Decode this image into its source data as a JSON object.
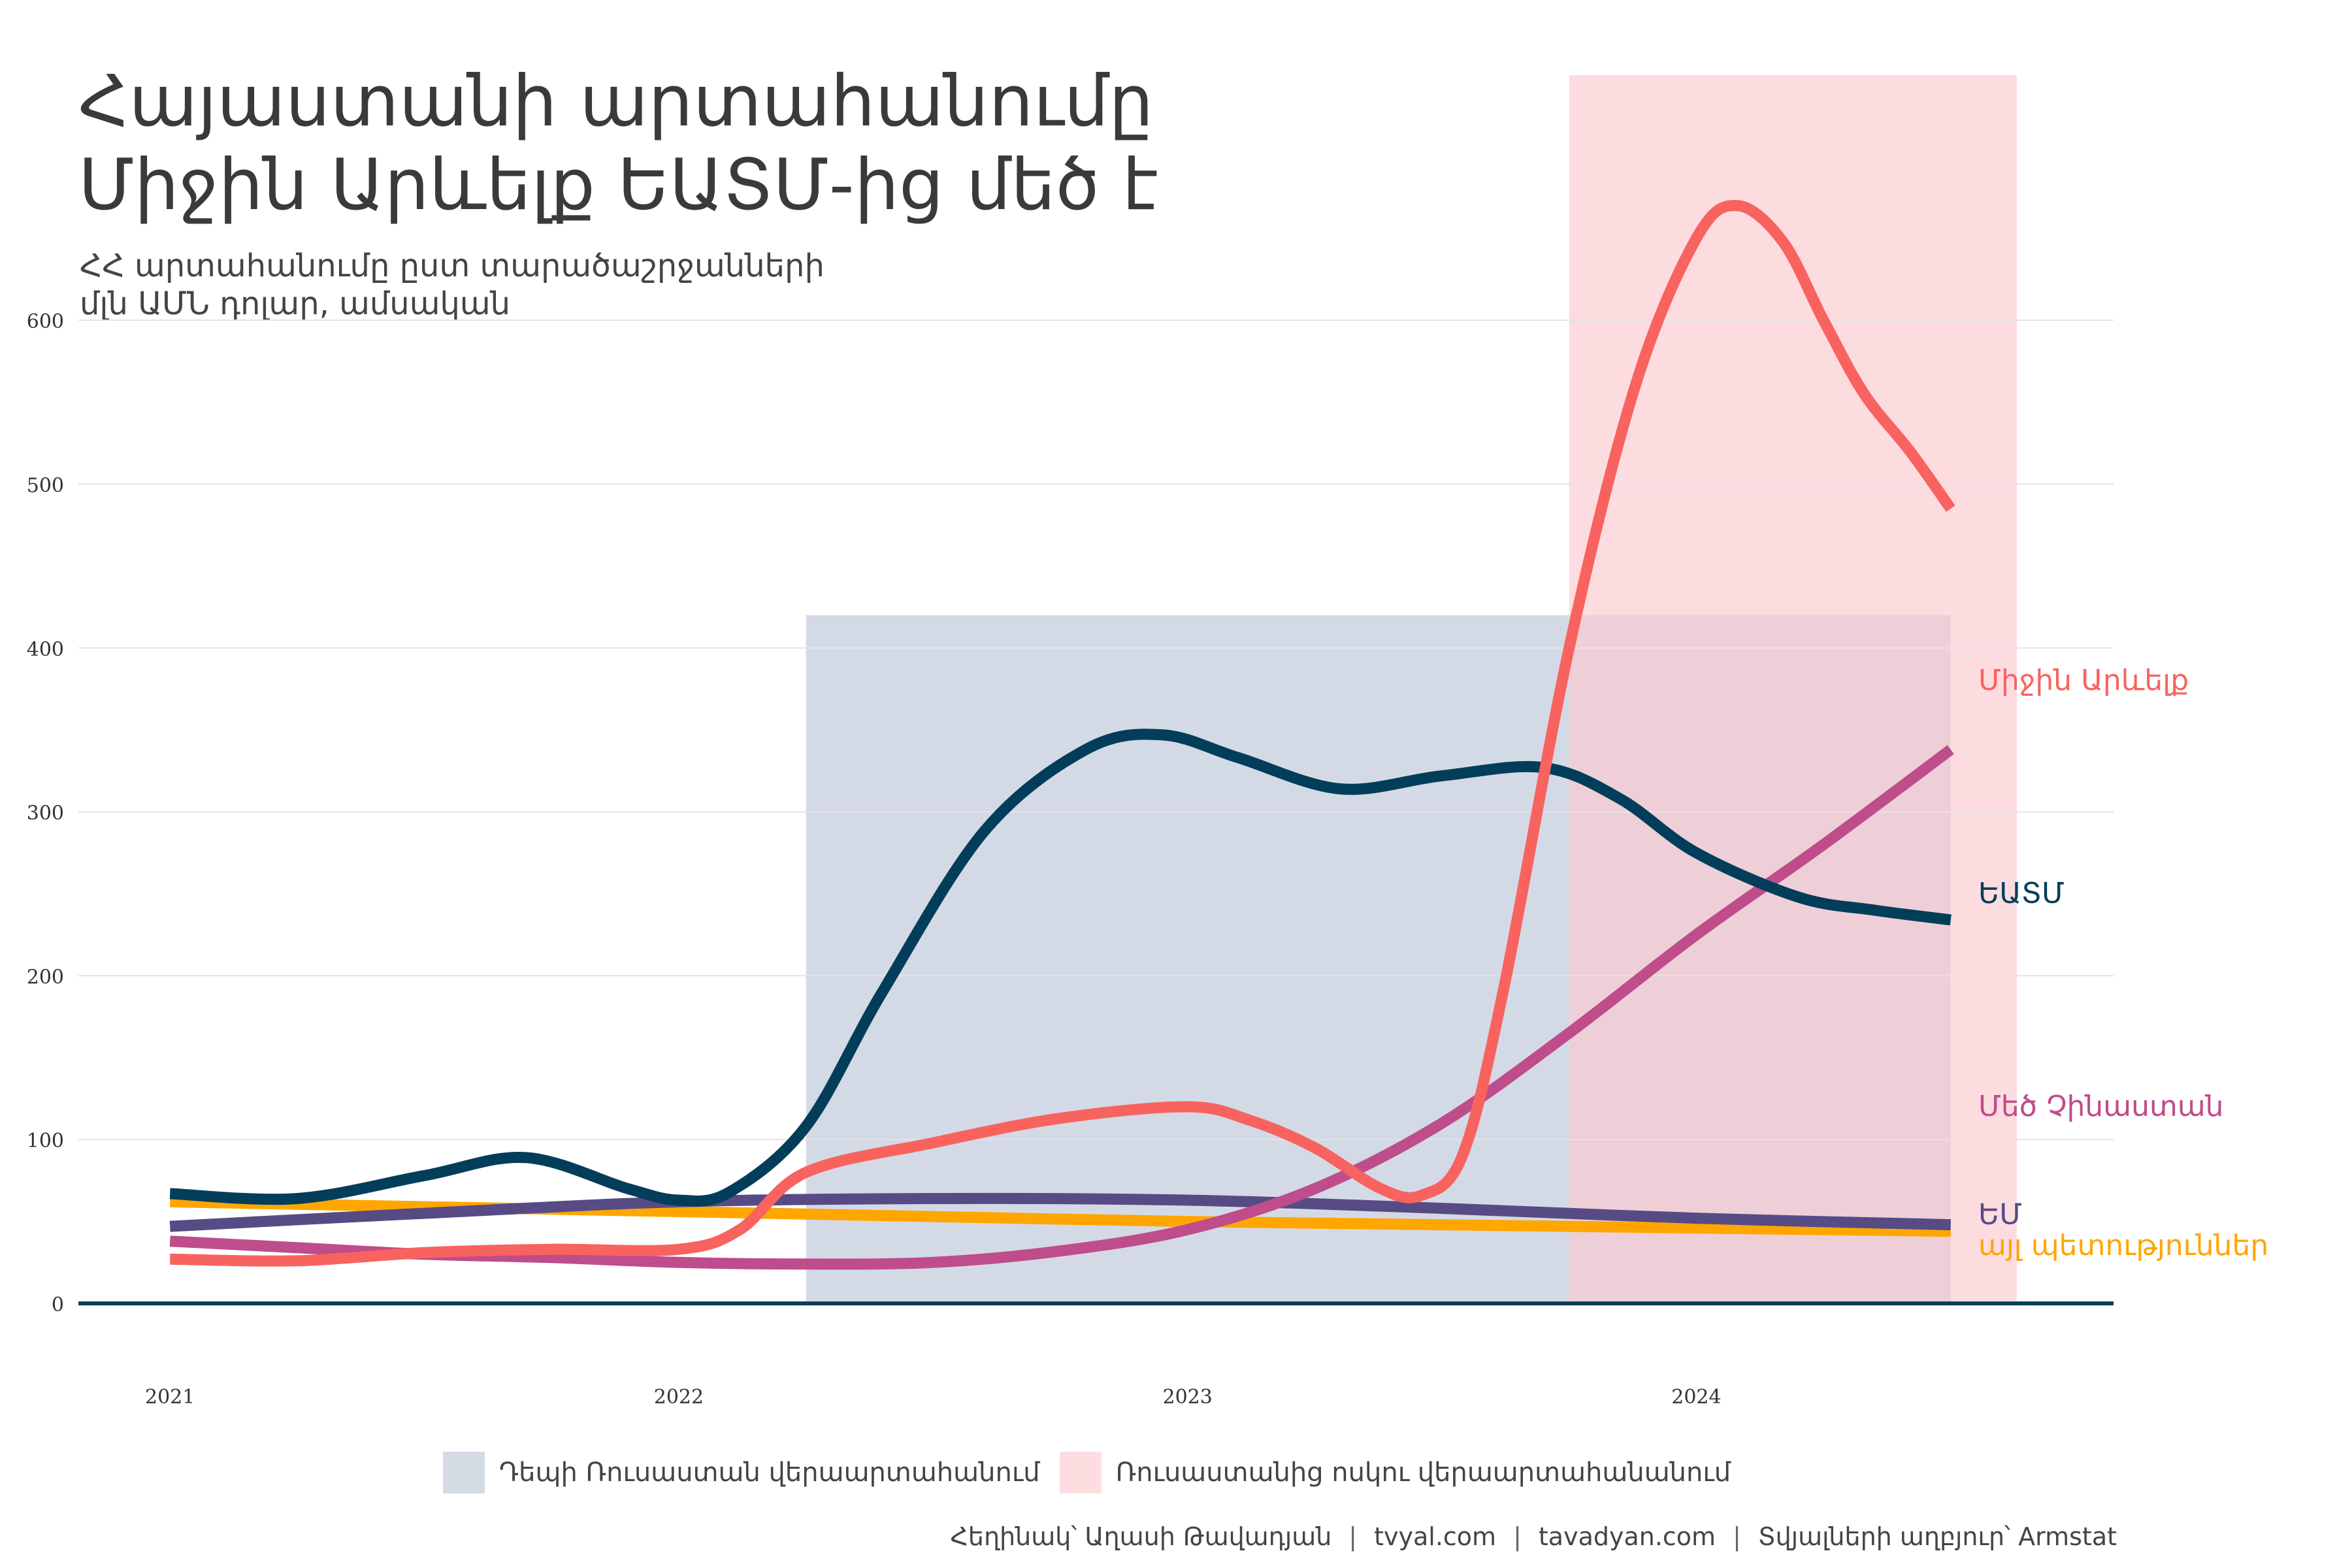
{
  "title_line1": "Հայաստանի արտահանումը",
  "title_line2": "Միջին Արևելք ԵԱՏՄ-ից մեծ է",
  "subtitle_line1": "ՀՀ արտահանումը ըստ տարածաշրջանների",
  "subtitle_line2": "մլն ԱՄՆ դոլար, ամսական",
  "legend": [
    {
      "label": "Դեպի Ռուսաստան վերաարտահանում",
      "color": "#d5dbe5"
    },
    {
      "label": "Ռուսաստանից ոսկու վերաարտահանանում",
      "color": "#fddde0"
    }
  ],
  "caption": {
    "author": "Հեղինակ՝ Աղասի Թավադյան",
    "site1": "tvyal.com",
    "site2": "tavadyan.com",
    "source": "Տվյալների աղբյուր՝ Armstat",
    "sep": "|"
  },
  "chart_data": {
    "type": "line",
    "ylim": [
      0,
      620
    ],
    "yticks": [
      0,
      100,
      200,
      300,
      400,
      500,
      600
    ],
    "xlim": [
      2020.82,
      2024.82
    ],
    "xticks": [
      2021,
      2022,
      2023,
      2024
    ],
    "xtick_labels": [
      "2021",
      "2022",
      "2023",
      "2024"
    ],
    "grid": true,
    "shaded_regions": [
      {
        "x0": 2022.25,
        "x1": 2024.5,
        "y0": 0,
        "y1": 420,
        "color": "#b7c1d4",
        "opacity": 0.6
      },
      {
        "x0": 2023.75,
        "x1": 2024.63,
        "y0": 0,
        "y1": 800,
        "color": "#fcc9cf",
        "opacity": 0.65
      }
    ],
    "series": [
      {
        "name": "Միջին Արևելք",
        "color": "#f8635f",
        "label_y": 380,
        "x": [
          2021.0,
          2021.25,
          2021.5,
          2021.75,
          2022.0,
          2022.12,
          2022.25,
          2022.5,
          2022.75,
          2023.0,
          2023.12,
          2023.25,
          2023.38,
          2023.46,
          2023.54,
          2023.62,
          2023.75,
          2023.88,
          2024.0,
          2024.08,
          2024.17,
          2024.25,
          2024.33,
          2024.42,
          2024.5
        ],
        "y": [
          27,
          26,
          31,
          33,
          33,
          45,
          80,
          98,
          113,
          120,
          112,
          95,
          70,
          66,
          90,
          190,
          400,
          560,
          650,
          670,
          648,
          600,
          555,
          520,
          485
        ]
      },
      {
        "name": "ԵԱՏՄ",
        "color": "#023e5a",
        "label_y": 250,
        "x": [
          2021.0,
          2021.25,
          2021.5,
          2021.7,
          2021.9,
          2022.0,
          2022.1,
          2022.25,
          2022.4,
          2022.6,
          2022.8,
          2022.95,
          2023.1,
          2023.3,
          2023.5,
          2023.7,
          2023.85,
          2024.0,
          2024.2,
          2024.35,
          2024.5
        ],
        "y": [
          67,
          64,
          78,
          89,
          70,
          63,
          68,
          108,
          190,
          288,
          338,
          347,
          333,
          314,
          322,
          327,
          308,
          275,
          248,
          240,
          234
        ]
      },
      {
        "name": "Մեծ Չինաստան",
        "color": "#bf4c8b",
        "label_y": 120,
        "x": [
          2021.0,
          2021.25,
          2021.5,
          2021.75,
          2022.0,
          2022.25,
          2022.5,
          2022.75,
          2023.0,
          2023.25,
          2023.5,
          2023.75,
          2024.0,
          2024.25,
          2024.5
        ],
        "y": [
          38,
          34,
          30,
          28,
          25,
          24,
          25,
          32,
          45,
          70,
          110,
          165,
          225,
          280,
          338
        ]
      },
      {
        "name": "ԵՄ",
        "color": "#574b85",
        "label_y": 54,
        "x": [
          2021.0,
          2021.5,
          2022.0,
          2022.5,
          2023.0,
          2023.5,
          2024.0,
          2024.5
        ],
        "y": [
          47,
          55,
          62,
          64,
          63,
          58,
          52,
          48
        ]
      },
      {
        "name": "այլ պետություններ",
        "color": "#ffa600",
        "label_y": 35,
        "x": [
          2021.0,
          2021.5,
          2022.0,
          2022.5,
          2023.0,
          2023.5,
          2024.0,
          2024.5
        ],
        "y": [
          62,
          59,
          56,
          53,
          50,
          48,
          46,
          44
        ]
      }
    ]
  }
}
